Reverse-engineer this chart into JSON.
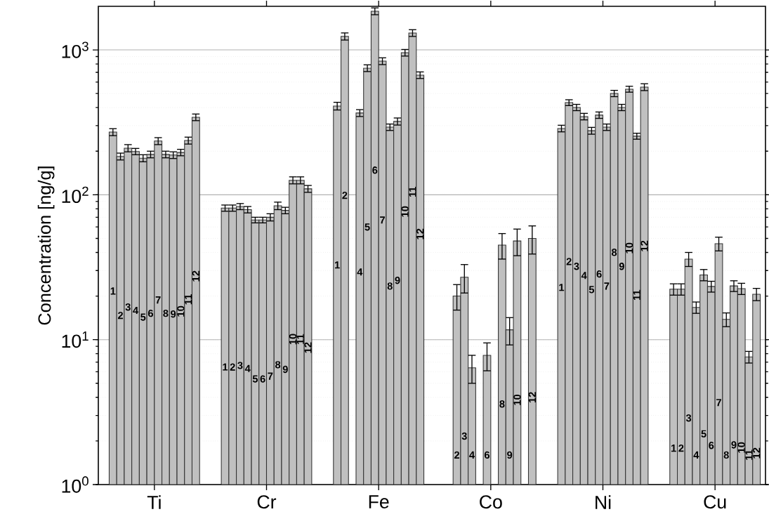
{
  "chart_data": {
    "type": "bar",
    "ylabel": "Concentration [ng/g]",
    "categories": [
      "Ti",
      "Cr",
      "Fe",
      "Co",
      "Ni",
      "Cu"
    ],
    "log": "y",
    "ylim": [
      1,
      2000
    ],
    "yticks": [
      {
        "value": 1,
        "label": "10$^{0}$"
      },
      {
        "value": 10,
        "label": "10$^{1}$"
      },
      {
        "value": 100,
        "label": "10$^{2}$"
      },
      {
        "value": 1000,
        "label": "10$^{3}$"
      }
    ],
    "grid": "y",
    "series": [
      {
        "name": "1",
        "color": "#c0c0c0",
        "values": [
          271,
          81,
          410,
          null,
          287,
          22.3
        ],
        "errors": [
          15,
          4,
          25,
          null,
          15,
          2
        ]
      },
      {
        "name": "2",
        "color": "#c0c0c0",
        "values": [
          184,
          81,
          1240,
          20,
          433,
          22.3
        ],
        "errors": [
          10,
          4,
          70,
          4,
          20,
          2
        ]
      },
      {
        "name": "3",
        "color": "#c0c0c0",
        "values": [
          210,
          83,
          null,
          27,
          401,
          36
        ],
        "errors": [
          12,
          4,
          null,
          6,
          20,
          4
        ]
      },
      {
        "name": "4",
        "color": "#c0c0c0",
        "values": [
          199,
          79,
          367,
          6.4,
          347,
          16.7
        ],
        "errors": [
          10,
          4,
          20,
          1.4,
          18,
          1.5
        ]
      },
      {
        "name": "5",
        "color": "#c0c0c0",
        "values": [
          179,
          67,
          749,
          null,
          277,
          28
        ],
        "errors": [
          10,
          3,
          40,
          null,
          15,
          2.5
        ]
      },
      {
        "name": "6",
        "color": "#c0c0c0",
        "values": [
          190,
          67,
          1850,
          7.8,
          355,
          23.3
        ],
        "errors": [
          10,
          3,
          100,
          1.7,
          18,
          2
        ]
      },
      {
        "name": "7",
        "color": "#c0c0c0",
        "values": [
          235,
          70,
          837,
          null,
          293,
          46
        ],
        "errors": [
          13,
          4,
          45,
          null,
          15,
          5
        ]
      },
      {
        "name": "8",
        "color": "#c0c0c0",
        "values": [
          190,
          84,
          293,
          45,
          501,
          13.8
        ],
        "errors": [
          10,
          5,
          15,
          9,
          25,
          1.5
        ]
      },
      {
        "name": "9",
        "color": "#c0c0c0",
        "values": [
          188,
          78,
          321,
          11.7,
          401,
          23.5
        ],
        "errors": [
          10,
          4,
          18,
          2.5,
          20,
          2
        ]
      },
      {
        "name": "10",
        "color": "#c0c0c0",
        "values": [
          196,
          126,
          957,
          48,
          536,
          22.5
        ],
        "errors": [
          10,
          7,
          50,
          10,
          25,
          2
        ]
      },
      {
        "name": "11",
        "color": "#c0c0c0",
        "values": [
          237,
          126,
          1309,
          null,
          254,
          7.6
        ],
        "errors": [
          13,
          7,
          70,
          null,
          12,
          0.7
        ]
      },
      {
        "name": "12",
        "color": "#c0c0c0",
        "values": [
          343,
          110,
          670,
          50,
          554,
          20.6
        ],
        "errors": [
          18,
          6,
          35,
          11,
          30,
          2
        ]
      }
    ]
  }
}
